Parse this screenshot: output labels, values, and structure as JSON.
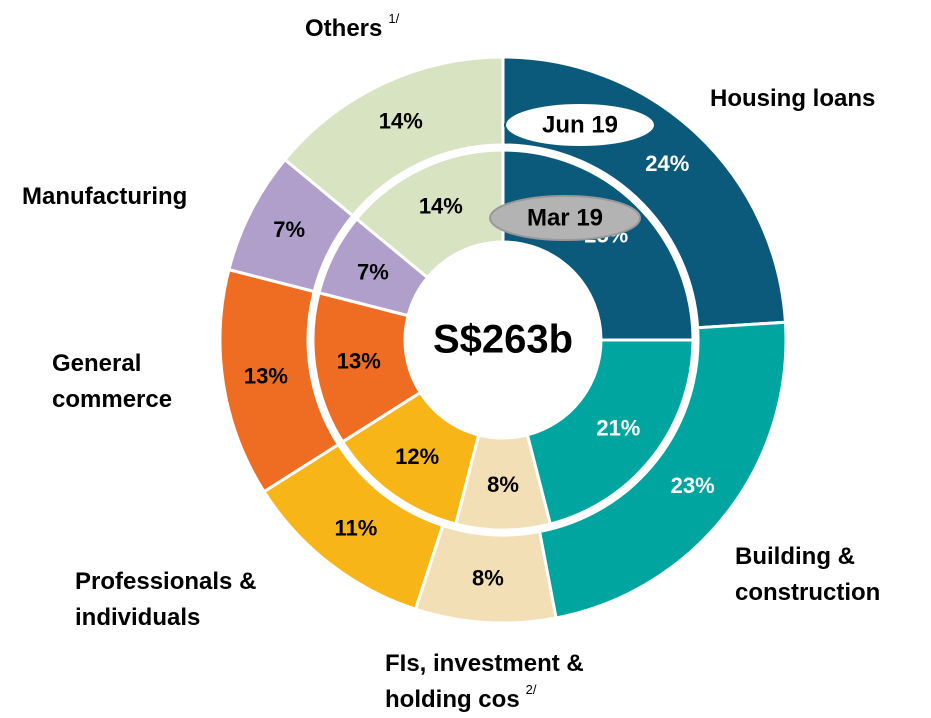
{
  "chart_data": {
    "type": "donut",
    "center_label": "S$263b",
    "categories": [
      [
        "Housing loans"
      ],
      [
        "Building &",
        "construction"
      ],
      [
        "FIs, investment &",
        "holding cos"
      ],
      [
        "Professionals &",
        "individuals"
      ],
      [
        "General",
        "commerce"
      ],
      [
        "Manufacturing"
      ],
      [
        "Others"
      ]
    ],
    "footnotes": [
      {
        "category": 6,
        "text": "1/"
      },
      {
        "category": 2,
        "text": "2/"
      }
    ],
    "colors": [
      "#0b5a7b",
      "#00a59f",
      "#f2dfb6",
      "#f8b518",
      "#ef6d22",
      "#b09fcb",
      "#d7e3c1"
    ],
    "series": [
      {
        "name": "Jun 19",
        "ring": "outer",
        "values": [
          24,
          23,
          8,
          11,
          13,
          7,
          14
        ],
        "value_labels": [
          "24%",
          "23%",
          "8%",
          "11%",
          "13%",
          "7%",
          "14%"
        ]
      },
      {
        "name": "Mar 19",
        "ring": "inner",
        "values": [
          25,
          21,
          8,
          12,
          13,
          7,
          14
        ],
        "value_labels": [
          "25%",
          "21%",
          "8%",
          "12%",
          "13%",
          "7%",
          "14%"
        ]
      }
    ]
  }
}
